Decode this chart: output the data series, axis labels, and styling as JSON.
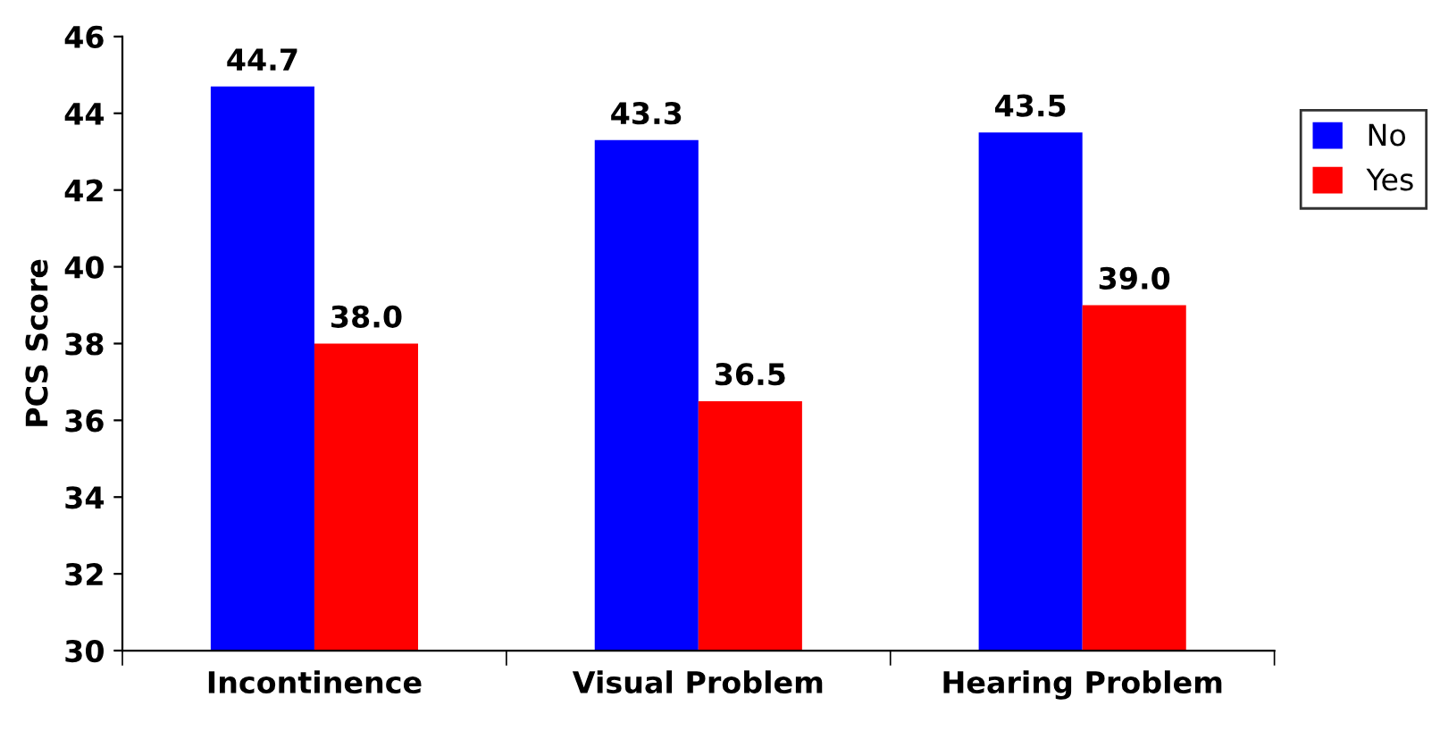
{
  "chart_data": {
    "type": "bar",
    "ylabel": "PCS Score",
    "categories": [
      "Incontinence",
      "Visual Problem",
      "Hearing Problem"
    ],
    "series": [
      {
        "name": "No",
        "color": "#0000ff",
        "values": [
          44.7,
          43.3,
          43.5
        ],
        "value_labels": [
          "44.7",
          "43.3",
          "43.5"
        ]
      },
      {
        "name": "Yes",
        "color": "#ff0000",
        "values": [
          38.0,
          36.5,
          39.0
        ],
        "value_labels": [
          "38.0",
          "36.5",
          "39.0"
        ]
      }
    ],
    "ylim": [
      30,
      46
    ],
    "yticks": [
      30,
      32,
      34,
      36,
      38,
      40,
      42,
      44,
      46
    ],
    "grid": false,
    "legend": "right"
  }
}
